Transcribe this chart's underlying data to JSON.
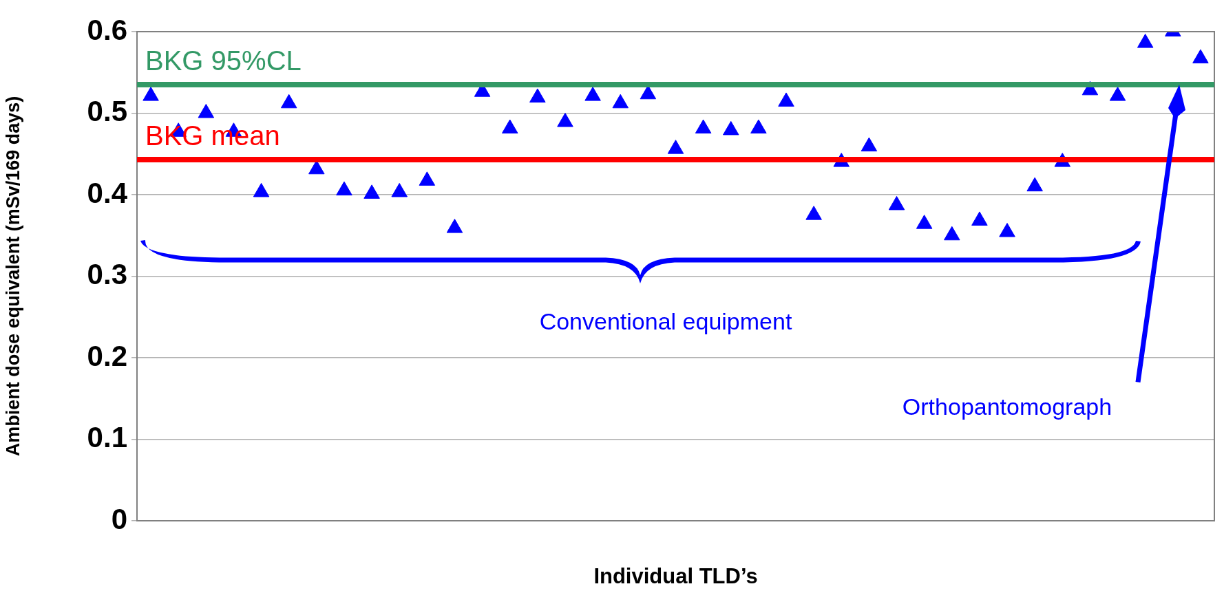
{
  "chart_data": {
    "type": "scatter",
    "xlabel": "Individual TLD’s",
    "ylabel": "Ambient dose equivalent (mSv/169 days)",
    "categories": [
      null,
      null,
      null,
      null,
      null,
      null,
      null,
      null,
      null,
      null,
      null,
      null,
      null,
      null,
      null,
      null,
      null,
      null,
      null,
      null,
      null,
      null,
      null,
      null,
      null,
      null,
      null,
      null,
      null,
      null,
      null,
      null,
      null,
      null,
      null,
      null,
      null,
      null,
      null
    ],
    "series": [
      {
        "color": "#0000ff",
        "values": [
          0.521,
          0.477,
          0.5,
          0.477,
          0.403,
          0.512,
          0.431,
          0.405,
          0.401,
          0.403,
          0.417,
          0.359,
          0.526,
          0.481,
          0.519,
          0.489,
          0.521,
          0.512,
          0.523,
          0.456,
          0.481,
          0.479,
          0.481,
          0.514,
          0.375,
          0.44,
          0.459,
          0.387,
          0.364,
          0.35,
          0.368,
          0.354,
          0.41,
          0.44,
          0.528,
          0.521,
          0.586,
          0.6,
          0.567
        ]
      }
    ],
    "ylim": [
      0,
      0.6
    ],
    "yticks": [
      0,
      0.1,
      0.2,
      0.3,
      0.4,
      0.5,
      0.6
    ],
    "tick_labels": "y",
    "grid": "y",
    "legend": false,
    "marker": "triangle",
    "ref_lines": [
      {
        "axis": "y",
        "value": 0.535,
        "label": "BKG 95%CL",
        "color": "#339966"
      },
      {
        "axis": "y",
        "value": 0.443,
        "label": "BKG mean",
        "color": "#ff0000"
      }
    ],
    "annotations": [
      "Conventional equipment",
      "Orthopantomograph"
    ]
  }
}
